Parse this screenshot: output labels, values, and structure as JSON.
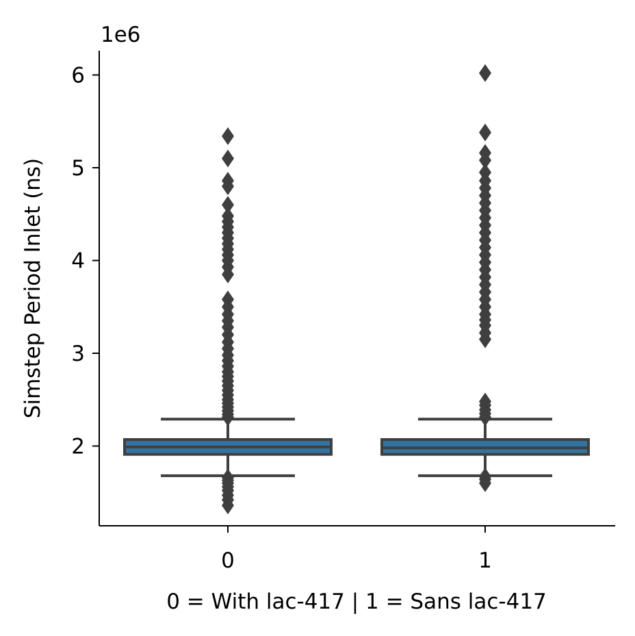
{
  "chart_data": {
    "type": "box",
    "title": "",
    "xlabel": "0 = With lac-417 | 1 = Sans lac-417",
    "ylabel": "Simstep Period Inlet (ns)",
    "y_offset_label": "1e6",
    "y_tick_values": [
      2,
      3,
      4,
      5,
      6
    ],
    "y_tick_labels": [
      "2",
      "3",
      "4",
      "5",
      "6"
    ],
    "ylim": [
      1.13,
      6.25
    ],
    "grid": false,
    "legend": "none",
    "categories": [
      "0",
      "1"
    ],
    "box_fill": "#3274a1",
    "line_color": "#3f3f3f",
    "series": [
      {
        "category": "0",
        "whisker_low": 1.68,
        "q1": 1.91,
        "median": 1.99,
        "q3": 2.07,
        "whisker_high": 2.29,
        "outliers": [
          1.36,
          1.42,
          1.47,
          1.52,
          1.56,
          1.6,
          1.63,
          1.66,
          2.31,
          2.34,
          2.38,
          2.42,
          2.46,
          2.5,
          2.55,
          2.6,
          2.65,
          2.7,
          2.75,
          2.8,
          2.86,
          2.92,
          2.98,
          3.05,
          3.12,
          3.2,
          3.28,
          3.35,
          3.42,
          3.5,
          3.58,
          3.85,
          3.93,
          4.0,
          4.06,
          4.12,
          4.18,
          4.24,
          4.3,
          4.36,
          4.42,
          4.48,
          4.6,
          4.8,
          4.86,
          5.1,
          5.34
        ]
      },
      {
        "category": "1",
        "whisker_low": 1.68,
        "q1": 1.91,
        "median": 1.98,
        "q3": 2.07,
        "whisker_high": 2.29,
        "outliers": [
          1.6,
          1.64,
          1.67,
          2.31,
          2.35,
          2.39,
          2.44,
          2.48,
          3.15,
          3.22,
          3.3,
          3.36,
          3.42,
          3.5,
          3.58,
          3.66,
          3.74,
          3.82,
          3.9,
          3.98,
          4.06,
          4.14,
          4.22,
          4.3,
          4.38,
          4.46,
          4.54,
          4.62,
          4.7,
          4.78,
          4.86,
          4.95,
          5.08,
          5.16,
          5.38,
          6.02
        ]
      }
    ]
  }
}
